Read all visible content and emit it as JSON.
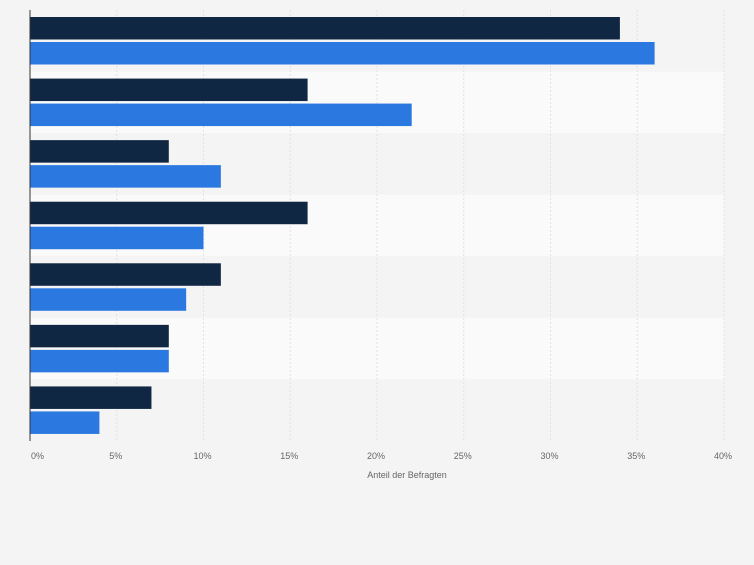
{
  "chart_data": {
    "type": "bar",
    "orientation": "horizontal",
    "categories": [
      "",
      "",
      "",
      "",
      "",
      "",
      ""
    ],
    "series": [
      {
        "color": "#0f2742",
        "values": [
          34,
          16,
          8,
          16,
          11,
          8,
          7
        ]
      },
      {
        "color": "#2a78e0",
        "values": [
          36,
          22,
          11,
          10,
          9,
          8,
          4
        ]
      }
    ],
    "xlim": [
      0,
      40
    ],
    "xticks": [
      0,
      5,
      10,
      15,
      20,
      25,
      30,
      35,
      40
    ],
    "tick_labels": [
      "0%",
      "5%",
      "10%",
      "15%",
      "20%",
      "25%",
      "30%",
      "35%",
      "40%"
    ],
    "xlabel": "Anteil der Befragten",
    "grid": true,
    "legend": "none"
  }
}
